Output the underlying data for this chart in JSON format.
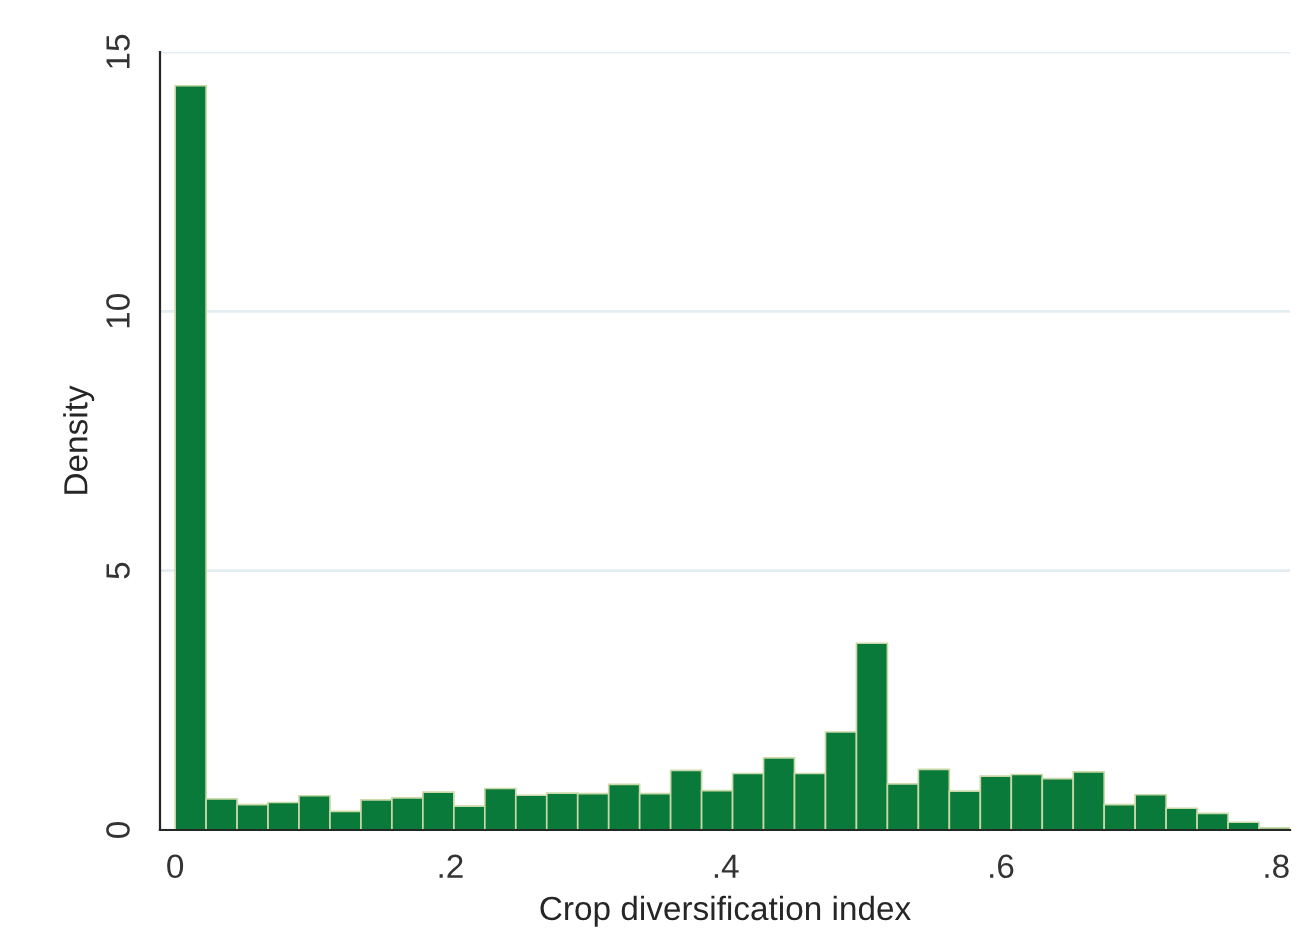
{
  "chart_data": {
    "type": "histogram",
    "xlabel": "Crop diversification index",
    "ylabel": "Density",
    "bins": [
      0,
      0.0225,
      0.045,
      0.0675,
      0.09,
      0.1125,
      0.135,
      0.1575,
      0.18,
      0.2025,
      0.225,
      0.2475,
      0.27,
      0.2925,
      0.315,
      0.3375,
      0.36,
      0.3825,
      0.405,
      0.4275,
      0.45,
      0.4725,
      0.495,
      0.5175,
      0.54,
      0.5625,
      0.585,
      0.6075,
      0.63,
      0.6525,
      0.675,
      0.6975,
      0.72,
      0.7425,
      0.765,
      0.7875,
      0.81
    ],
    "values": [
      14.35,
      0.6,
      0.49,
      0.53,
      0.66,
      0.36,
      0.58,
      0.62,
      0.73,
      0.46,
      0.8,
      0.67,
      0.71,
      0.7,
      0.88,
      0.7,
      1.15,
      0.76,
      1.09,
      1.39,
      1.09,
      1.89,
      3.6,
      0.89,
      1.17,
      0.75,
      1.04,
      1.07,
      0.99,
      1.12,
      0.49,
      0.68,
      0.42,
      0.32,
      0.15,
      0.04
    ],
    "color": "#0a7a3a",
    "xlim": [
      -0.011,
      0.81
    ],
    "xticks": [
      0,
      {
        "value": 0.2,
        "label": ".2"
      },
      {
        "value": 0.4,
        "label": ".4"
      },
      {
        "value": 0.6,
        "label": ".6"
      },
      {
        "value": 0.8,
        "label": ".8"
      }
    ],
    "ylim": [
      0,
      15
    ],
    "yticks": [
      0,
      5,
      10,
      15
    ],
    "grid": "y"
  }
}
